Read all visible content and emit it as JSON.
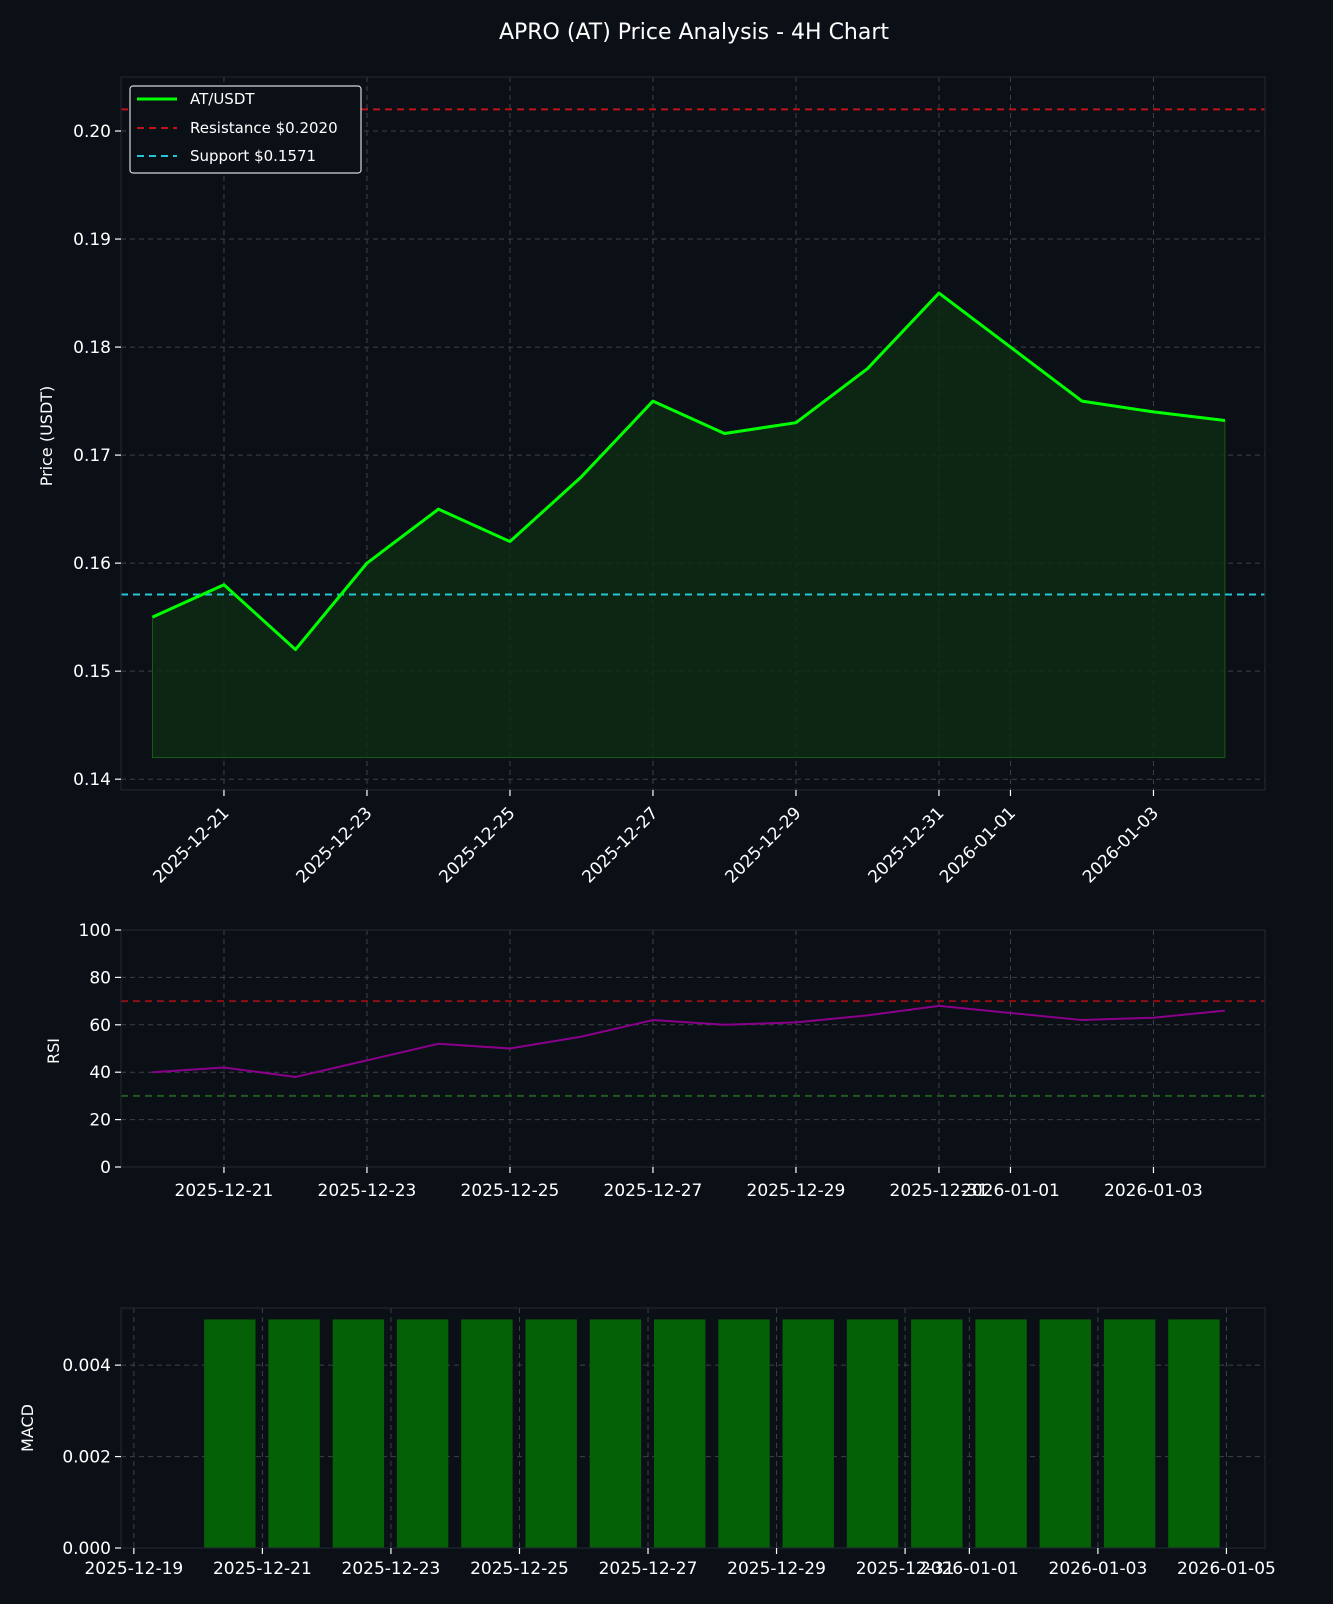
{
  "title": "APRO (AT) Price Analysis - 4H Chart",
  "colors": {
    "background": "#0b0f16",
    "price_line": "#00ff00",
    "price_fill": "#0e2a14",
    "resistance": "#c0121a",
    "support": "#25c6d3",
    "rsi_line": "#8b008b",
    "rsi_overbought": "#8b0f14",
    "rsi_oversold": "#1f5a1f",
    "macd_bar": "#056105"
  },
  "chart_data": [
    {
      "type": "line",
      "name": "price",
      "ylabel": "Price (USDT)",
      "xlabel": "",
      "ylim": [
        0.139,
        0.205
      ],
      "fill_baseline": 0.142,
      "yticks": [
        "0.14",
        "0.15",
        "0.16",
        "0.17",
        "0.18",
        "0.19",
        "0.20"
      ],
      "ytick_values": [
        0.14,
        0.15,
        0.16,
        0.17,
        0.18,
        0.19,
        0.2
      ],
      "xticks": [
        "2025-12-21",
        "2025-12-23",
        "2025-12-25",
        "2025-12-27",
        "2025-12-29",
        "2025-12-31",
        "2026-01-01",
        "2026-01-03"
      ],
      "xtick_dates": [
        "2025-12-21",
        "2025-12-23",
        "2025-12-25",
        "2025-12-27",
        "2025-12-29",
        "2025-12-31",
        "2026-01-01",
        "2026-01-03"
      ],
      "series": [
        {
          "name": "AT/USDT",
          "x": [
            "2025-12-20",
            "2025-12-21",
            "2025-12-22",
            "2025-12-23",
            "2025-12-24",
            "2025-12-25",
            "2025-12-26",
            "2025-12-27",
            "2025-12-28",
            "2025-12-29",
            "2025-12-30",
            "2025-12-31",
            "2026-01-01",
            "2026-01-02",
            "2026-01-03",
            "2026-01-04"
          ],
          "values": [
            0.155,
            0.158,
            0.152,
            0.16,
            0.165,
            0.162,
            0.168,
            0.175,
            0.172,
            0.173,
            0.178,
            0.185,
            0.18,
            0.175,
            0.174,
            0.1732
          ]
        }
      ],
      "hlines": [
        {
          "name": "Resistance $0.2020",
          "value": 0.202
        },
        {
          "name": "Support $0.1571",
          "value": 0.1571
        }
      ],
      "legend": [
        "AT/USDT",
        "Resistance $0.2020",
        "Support $0.1571"
      ],
      "legend_position": "top-left",
      "grid": true
    },
    {
      "type": "line",
      "name": "rsi",
      "ylabel": "RSI",
      "ylim": [
        0,
        100
      ],
      "yticks": [
        "0",
        "20",
        "40",
        "60",
        "80",
        "100"
      ],
      "ytick_values": [
        0,
        20,
        40,
        60,
        80,
        100
      ],
      "xticks": [
        "2025-12-21",
        "2025-12-23",
        "2025-12-25",
        "2025-12-27",
        "2025-12-29",
        "2025-12-31",
        "2026-01-01",
        "2026-01-03"
      ],
      "xtick_dates": [
        "2025-12-21",
        "2025-12-23",
        "2025-12-25",
        "2025-12-27",
        "2025-12-29",
        "2025-12-31",
        "2026-01-01",
        "2026-01-03"
      ],
      "series": [
        {
          "name": "RSI",
          "x": [
            "2025-12-20",
            "2025-12-21",
            "2025-12-22",
            "2025-12-23",
            "2025-12-24",
            "2025-12-25",
            "2025-12-26",
            "2025-12-27",
            "2025-12-28",
            "2025-12-29",
            "2025-12-30",
            "2025-12-31",
            "2026-01-01",
            "2026-01-02",
            "2026-01-03",
            "2026-01-04"
          ],
          "values": [
            40,
            42,
            38,
            45,
            52,
            50,
            55,
            62,
            60,
            61,
            64,
            68,
            65,
            62,
            63,
            66
          ]
        }
      ],
      "hlines": [
        {
          "name": "overbought",
          "value": 70
        },
        {
          "name": "oversold",
          "value": 30
        }
      ],
      "grid": true
    },
    {
      "type": "bar",
      "name": "macd",
      "ylabel": "MACD",
      "ylim": [
        0,
        0.00525
      ],
      "yticks": [
        "0.000",
        "0.002",
        "0.004"
      ],
      "ytick_values": [
        0,
        0.002,
        0.004
      ],
      "xlim": [
        "2025-12-19",
        "2026-01-05"
      ],
      "xticks": [
        "2025-12-19",
        "2025-12-21",
        "2025-12-23",
        "2025-12-25",
        "2025-12-27",
        "2025-12-29",
        "2025-12-31",
        "2026-01-01",
        "2026-01-03",
        "2026-01-05"
      ],
      "xtick_dates": [
        "2025-12-19",
        "2025-12-21",
        "2025-12-23",
        "2025-12-25",
        "2025-12-27",
        "2025-12-29",
        "2025-12-31",
        "2026-01-01",
        "2026-01-03",
        "2026-01-05"
      ],
      "x": [
        "2025-12-20",
        "2025-12-21",
        "2025-12-22",
        "2025-12-23",
        "2025-12-24",
        "2025-12-25",
        "2025-12-26",
        "2025-12-27",
        "2025-12-28",
        "2025-12-29",
        "2025-12-30",
        "2025-12-31",
        "2026-01-01",
        "2026-01-02",
        "2026-01-03",
        "2026-01-04"
      ],
      "values": [
        0.005,
        0.005,
        0.005,
        0.005,
        0.005,
        0.005,
        0.005,
        0.005,
        0.005,
        0.005,
        0.005,
        0.005,
        0.005,
        0.005,
        0.005,
        0.005
      ],
      "grid": true
    }
  ]
}
